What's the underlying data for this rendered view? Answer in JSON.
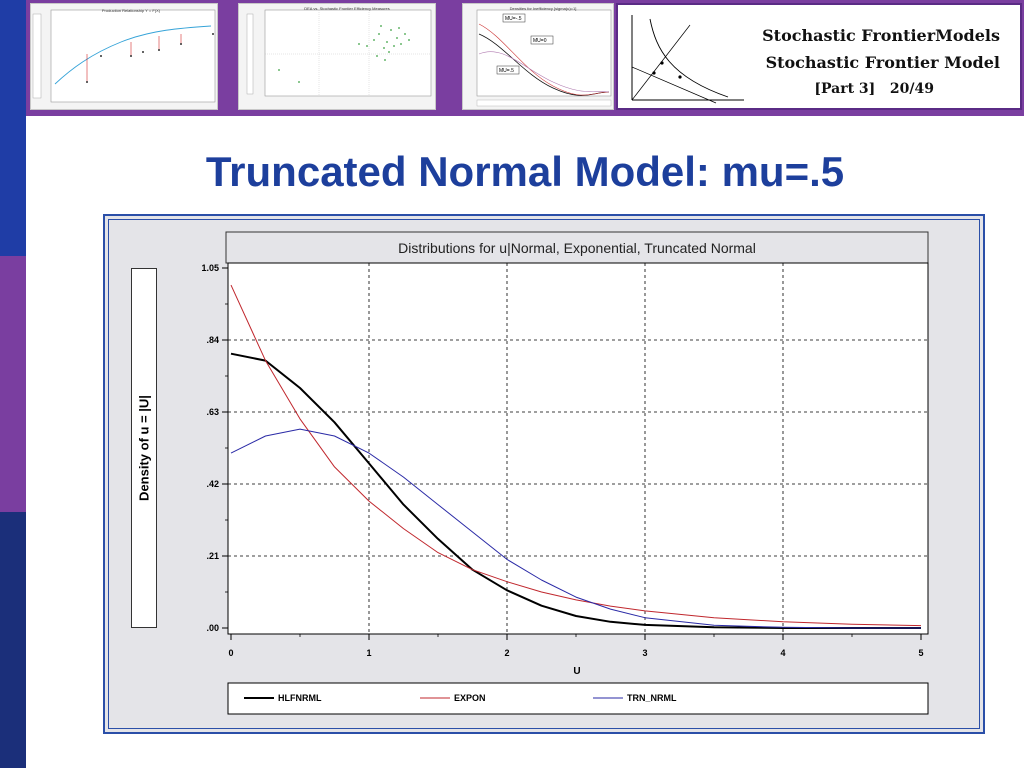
{
  "header": {
    "line1": "Stochastic FrontierModels",
    "line2": "Stochastic Frontier Model",
    "part": "[Part 3]",
    "page": "20/49"
  },
  "thumbnails": [
    {
      "name": "production-thumbnail",
      "title": "Production Relationship Y = F(X)"
    },
    {
      "name": "dea-thumbnail",
      "title": "DEA vs. Stochastic Frontier Efficiency Measures"
    },
    {
      "name": "densities-thumbnail",
      "title": "Densities for Inefficiency [sigma(u)=1]",
      "labels": [
        "MU=-.5",
        "MU=0",
        "MU=.5"
      ]
    }
  ],
  "slide": {
    "title": "Truncated Normal Model: mu=.5"
  },
  "chart_data": {
    "type": "line",
    "title": "Distributions for u|Normal, Exponential, Truncated Normal",
    "xlabel": "U",
    "ylabel": "Density of u = |U|",
    "xlim": [
      0,
      5
    ],
    "ylim": [
      0,
      1.05
    ],
    "xticks": [
      0,
      1,
      2,
      3,
      4,
      5
    ],
    "yticks": [
      0,
      0.21,
      0.42,
      0.63,
      0.84,
      1.05
    ],
    "xtick_labels": [
      "0",
      "1",
      "2",
      "3",
      "4",
      "5"
    ],
    "ytick_labels": [
      ".00",
      ".21",
      ".42",
      ".63",
      ".84",
      "1.05"
    ],
    "grid": true,
    "legend_position": "bottom",
    "series": [
      {
        "name": "HLFNRML",
        "color": "#000000",
        "x": [
          0,
          0.25,
          0.5,
          0.75,
          1.0,
          1.25,
          1.5,
          1.75,
          2.0,
          2.25,
          2.5,
          2.75,
          3.0,
          3.5,
          4.0,
          4.5,
          5.0
        ],
        "y": [
          0.8,
          0.78,
          0.7,
          0.6,
          0.48,
          0.36,
          0.26,
          0.17,
          0.11,
          0.065,
          0.035,
          0.018,
          0.009,
          0.002,
          0.0,
          0.0,
          0.0
        ]
      },
      {
        "name": "EXPON",
        "color": "#c0272d",
        "x": [
          0,
          0.25,
          0.5,
          0.75,
          1.0,
          1.25,
          1.5,
          1.75,
          2.0,
          2.25,
          2.5,
          2.75,
          3.0,
          3.5,
          4.0,
          4.5,
          5.0
        ],
        "y": [
          1.0,
          0.78,
          0.61,
          0.47,
          0.37,
          0.29,
          0.22,
          0.17,
          0.135,
          0.105,
          0.082,
          0.064,
          0.05,
          0.03,
          0.018,
          0.011,
          0.007
        ]
      },
      {
        "name": "TRN_NRML",
        "color": "#2a2aa6",
        "x": [
          0,
          0.25,
          0.5,
          0.75,
          1.0,
          1.25,
          1.5,
          1.75,
          2.0,
          2.25,
          2.5,
          2.75,
          3.0,
          3.5,
          4.0,
          4.5,
          5.0
        ],
        "y": [
          0.51,
          0.56,
          0.58,
          0.56,
          0.51,
          0.44,
          0.36,
          0.28,
          0.2,
          0.14,
          0.09,
          0.055,
          0.03,
          0.008,
          0.002,
          0.0,
          0.0
        ]
      }
    ]
  },
  "colors": {
    "accent_title": "#1d3f9c",
    "banner": "#7a3ea0",
    "frame_border": "#2b4fa8",
    "sidebar_top": "#1f3da6",
    "sidebar_mid": "#7a3ea0",
    "sidebar_bottom": "#1b2f7a"
  }
}
